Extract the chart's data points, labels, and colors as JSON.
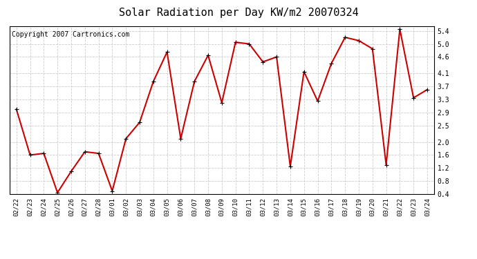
{
  "title": "Solar Radiation per Day KW/m2 20070324",
  "copyright": "Copyright 2007 Cartronics.com",
  "dates": [
    "02/22",
    "02/23",
    "02/24",
    "02/25",
    "02/26",
    "02/27",
    "02/28",
    "03/01",
    "03/02",
    "03/03",
    "03/04",
    "03/05",
    "03/06",
    "03/07",
    "03/08",
    "03/09",
    "03/10",
    "03/11",
    "03/12",
    "03/13",
    "03/14",
    "03/15",
    "03/16",
    "03/17",
    "03/18",
    "03/19",
    "03/20",
    "03/21",
    "03/22",
    "03/23",
    "03/24"
  ],
  "values": [
    3.0,
    1.6,
    1.65,
    0.45,
    1.1,
    1.7,
    1.65,
    0.5,
    2.1,
    2.6,
    3.85,
    4.75,
    2.1,
    3.85,
    4.65,
    3.2,
    5.05,
    5.0,
    4.45,
    4.6,
    1.25,
    4.15,
    3.25,
    4.4,
    5.2,
    5.1,
    4.85,
    1.3,
    5.45,
    3.35,
    3.6
  ],
  "line_color": "#cc0000",
  "bg_color": "#ffffff",
  "grid_color": "#cccccc",
  "ylim": [
    0.4,
    5.55
  ],
  "yticks": [
    0.4,
    0.8,
    1.2,
    1.6,
    2.0,
    2.5,
    2.9,
    3.3,
    3.7,
    4.1,
    4.6,
    5.0,
    5.4
  ],
  "title_fontsize": 11,
  "copyright_fontsize": 7
}
